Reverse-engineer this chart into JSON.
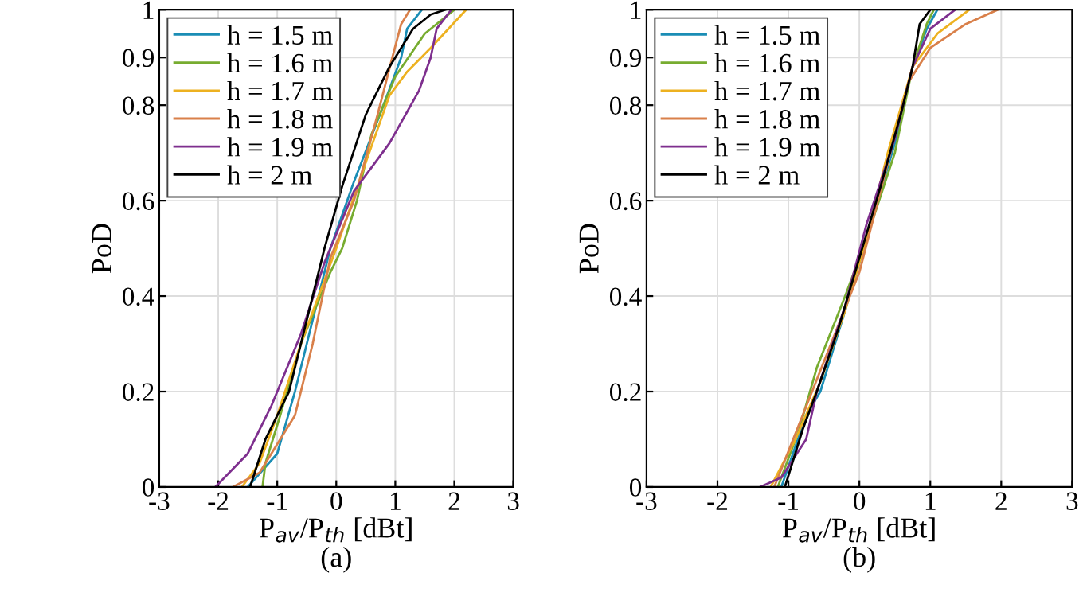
{
  "chart_data": [
    {
      "type": "line",
      "xlabel": "P$_{av}$/P$_{th}$ [dBt]",
      "ylabel": "PoD",
      "annotations": [
        "(a)"
      ],
      "xlim": [
        -3,
        3
      ],
      "ylim": [
        0,
        1
      ],
      "xticks": [
        {
          "value": -3,
          "label": "-3"
        },
        {
          "value": -2,
          "label": "-2"
        },
        {
          "value": -1,
          "label": "-1"
        },
        0,
        1,
        2,
        3
      ],
      "yticks": [
        0,
        0.2,
        0.4,
        0.6,
        0.8,
        0.9,
        1
      ],
      "grid": true,
      "legend": "top left",
      "marker": "none",
      "line_style": "solid",
      "series": [
        {
          "name": "h = 1.5 m",
          "color": "#1a8db5",
          "x": [
            -1.5,
            -1.0,
            -0.7,
            -0.4,
            -0.1,
            0.3,
            0.8,
            1.1,
            1.2,
            1.45
          ],
          "values": [
            0,
            0.07,
            0.2,
            0.35,
            0.5,
            0.64,
            0.8,
            0.9,
            0.96,
            1
          ]
        },
        {
          "name": "h = 1.6 m",
          "color": "#77ac30",
          "x": [
            -1.25,
            -1.2,
            -0.95,
            -0.6,
            -0.1,
            0.1,
            0.35,
            0.6,
            1.0,
            1.5,
            2.0
          ],
          "values": [
            0,
            0.05,
            0.15,
            0.3,
            0.45,
            0.5,
            0.6,
            0.74,
            0.86,
            0.95,
            1
          ]
        },
        {
          "name": "h = 1.7 m",
          "color": "#edb120",
          "x": [
            -1.6,
            -1.3,
            -1.0,
            -0.6,
            -0.3,
            0,
            0.5,
            0.9,
            1.2,
            1.6,
            2.2
          ],
          "values": [
            0,
            0.05,
            0.15,
            0.3,
            0.4,
            0.5,
            0.68,
            0.82,
            0.87,
            0.92,
            1
          ]
        },
        {
          "name": "h = 1.8 m",
          "color": "#d9804a",
          "x": [
            -1.75,
            -1.3,
            -0.7,
            -0.4,
            -0.1,
            0.3,
            0.7,
            0.95,
            1.1,
            1.25
          ],
          "values": [
            0,
            0.03,
            0.15,
            0.3,
            0.48,
            0.6,
            0.78,
            0.9,
            0.97,
            1
          ]
        },
        {
          "name": "h = 1.9 m",
          "color": "#7e2f8e",
          "x": [
            -2.05,
            -1.5,
            -1.1,
            -0.6,
            -0.2,
            0.3,
            0.9,
            1.4,
            1.6,
            1.7,
            1.95
          ],
          "values": [
            0,
            0.07,
            0.17,
            0.32,
            0.47,
            0.62,
            0.72,
            0.83,
            0.9,
            0.96,
            1
          ]
        },
        {
          "name": "h = 2 m",
          "color": "#000000",
          "x": [
            -1.46,
            -1.2,
            -0.8,
            -0.5,
            -0.2,
            0.1,
            0.5,
            0.9,
            1.3,
            1.6,
            1.85
          ],
          "values": [
            0,
            0.1,
            0.2,
            0.35,
            0.5,
            0.63,
            0.78,
            0.88,
            0.96,
            0.99,
            1
          ]
        }
      ]
    },
    {
      "type": "line",
      "xlabel": "P$_{av}$/P$_{th}$ [dBt]",
      "ylabel": "PoD",
      "annotations": [
        "(b)"
      ],
      "xlim": [
        -3,
        3
      ],
      "ylim": [
        0,
        1
      ],
      "xticks": [
        {
          "value": -3,
          "label": "-3"
        },
        {
          "value": -2,
          "label": "-2"
        },
        {
          "value": -1,
          "label": "-1"
        },
        0,
        1,
        2,
        3
      ],
      "yticks": [
        0,
        0.2,
        0.4,
        0.6,
        0.8,
        0.9,
        1
      ],
      "grid": true,
      "legend": "top left",
      "marker": "none",
      "line_style": "solid",
      "series": [
        {
          "name": "h = 1.5 m",
          "color": "#1a8db5",
          "x": [
            -1.1,
            -0.75,
            -0.55,
            -0.2,
            0.1,
            0.5,
            0.75,
            0.95,
            1.1
          ],
          "values": [
            0,
            0.15,
            0.2,
            0.37,
            0.52,
            0.72,
            0.88,
            0.96,
            1
          ]
        },
        {
          "name": "h = 1.6 m",
          "color": "#77ac30",
          "x": [
            -1.15,
            -0.85,
            -0.6,
            -0.2,
            0.1,
            0.5,
            0.75,
            0.95,
            1.05
          ],
          "values": [
            0,
            0.12,
            0.25,
            0.4,
            0.52,
            0.7,
            0.88,
            0.97,
            1
          ]
        },
        {
          "name": "h = 1.7 m",
          "color": "#edb120",
          "x": [
            -1.25,
            -0.9,
            -0.55,
            -0.2,
            0.1,
            0.4,
            0.75,
            1.1,
            1.55
          ],
          "values": [
            0,
            0.1,
            0.22,
            0.37,
            0.52,
            0.7,
            0.88,
            0.95,
            1
          ]
        },
        {
          "name": "h = 1.8 m",
          "color": "#d9804a",
          "x": [
            -1.2,
            -0.8,
            -0.4,
            0,
            0.35,
            0.7,
            1.0,
            1.5,
            1.95
          ],
          "values": [
            0,
            0.15,
            0.3,
            0.45,
            0.65,
            0.85,
            0.92,
            0.97,
            1
          ]
        },
        {
          "name": "h = 1.9 m",
          "color": "#7e2f8e",
          "x": [
            -1.4,
            -1.1,
            -0.75,
            -0.6,
            -0.2,
            0.1,
            0.5,
            0.75,
            1.0,
            1.35
          ],
          "values": [
            0,
            0.02,
            0.1,
            0.2,
            0.38,
            0.55,
            0.73,
            0.88,
            0.96,
            1
          ]
        },
        {
          "name": "h = 2 m",
          "color": "#000000",
          "x": [
            -1.05,
            -0.8,
            -0.6,
            -0.3,
            0,
            0.3,
            0.6,
            0.75,
            0.85,
            1.0
          ],
          "values": [
            0,
            0.12,
            0.2,
            0.33,
            0.48,
            0.63,
            0.79,
            0.88,
            0.97,
            1
          ]
        }
      ]
    }
  ]
}
